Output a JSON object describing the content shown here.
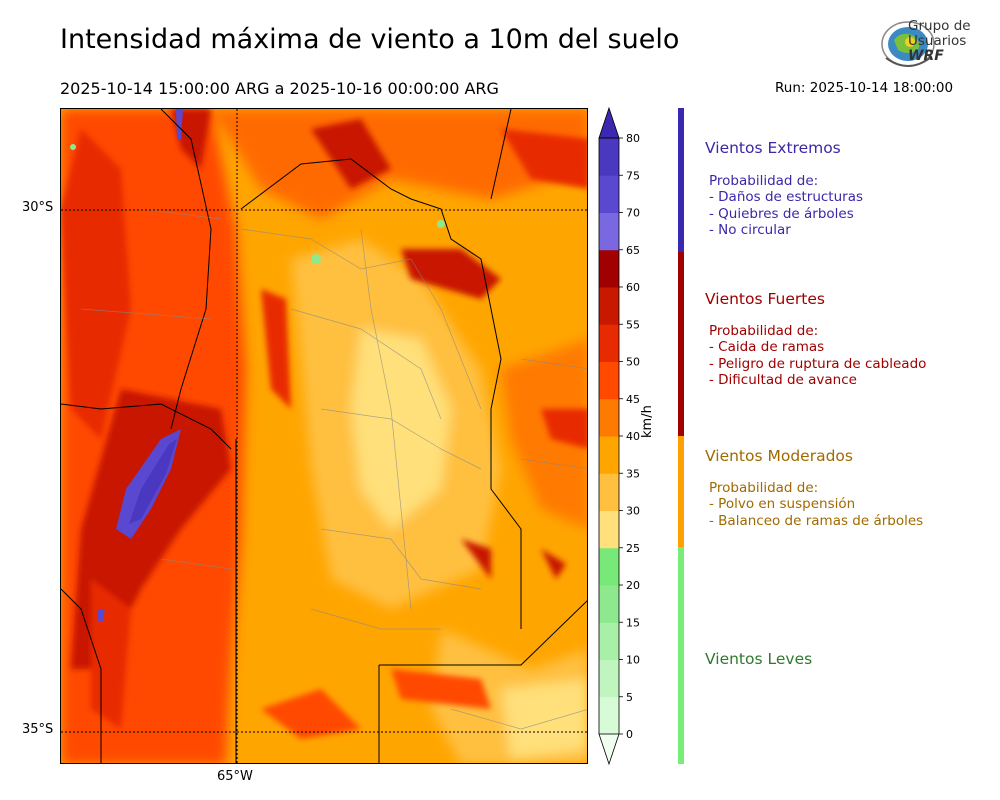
{
  "header": {
    "title": "Intensidad máxima de viento a 10m del suelo",
    "period": "2025-10-14 15:00:00 ARG  a  2025-10-16 00:00:00 ARG",
    "run": "Run: 2025-10-14 18:00:00"
  },
  "logo": {
    "line1": "Grupo de",
    "line2": "Usuarios",
    "line3": "WRF"
  },
  "map": {
    "lat_labels": [
      "30°S",
      "35°S"
    ],
    "lon_labels": [
      "65°W"
    ]
  },
  "colorbar": {
    "unit": "km/h",
    "ticks": [
      "0",
      "5",
      "10",
      "15",
      "20",
      "25",
      "30",
      "35",
      "40",
      "45",
      "50",
      "55",
      "60",
      "65",
      "70",
      "75",
      "80"
    ],
    "colors": [
      "#f0fff0",
      "#d6fbd6",
      "#c0f5c0",
      "#a8f0a8",
      "#8ee88e",
      "#78e878",
      "#ffe07a",
      "#ffc040",
      "#ffa500",
      "#ff7a00",
      "#ff4a00",
      "#e82a00",
      "#c81800",
      "#a00000",
      "#7a68e0",
      "#5a48d0",
      "#4a38c0"
    ],
    "extend_color": "#3c28b0"
  },
  "legend": {
    "extremos": {
      "title": "Vientos Extremos",
      "prob": "Probabilidad de:",
      "items": [
        "- Daños de estructuras",
        "- Quiebres de árboles",
        "- No circular"
      ],
      "color": "#3a28a8"
    },
    "fuertes": {
      "title": "Vientos Fuertes",
      "prob": "Probabilidad de:",
      "items": [
        "- Caida de ramas",
        "- Peligro de ruptura de cableado",
        "- Dificultad de avance"
      ],
      "color": "#a00000"
    },
    "moderados": {
      "title": "Vientos Moderados",
      "prob": "Probabilidad de:",
      "items": [
        "- Polvo en suspensión",
        "- Balanceo de ramas de árboles"
      ],
      "color": "#a06a00"
    },
    "leves": {
      "title": "Vientos Leves",
      "color": "#2e7a2e"
    }
  },
  "bar_colors": {
    "extremos": "#3a28b0",
    "fuertes": "#a00000",
    "moderados": "#ffa000",
    "leves": "#78ee78"
  }
}
